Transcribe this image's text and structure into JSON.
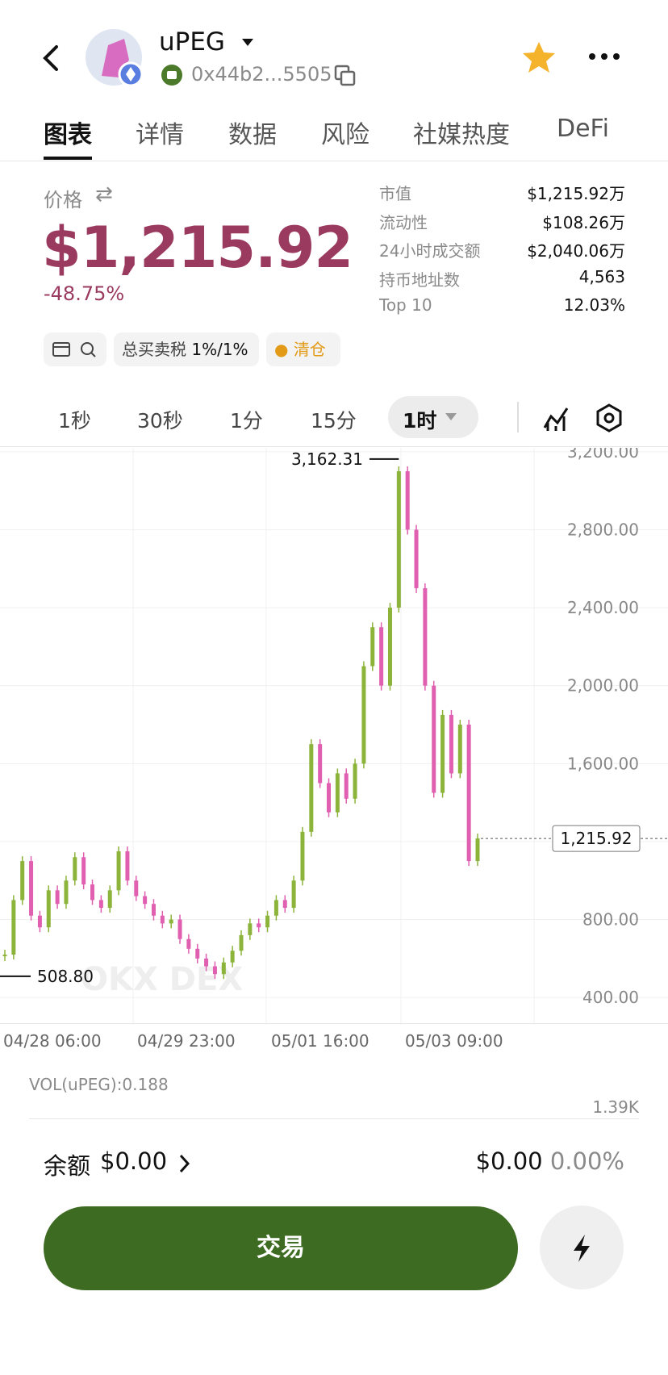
{
  "header": {
    "token": "uPEG",
    "address": "0x44b2...5505"
  },
  "tabs": [
    "图表",
    "详情",
    "数据",
    "风险",
    "社媒热度",
    "DeFi"
  ],
  "price": {
    "label": "价格",
    "value": "$1,215.92",
    "change": "-48.75%"
  },
  "stats": [
    {
      "label": "市值",
      "value": "$1,215.92万"
    },
    {
      "label": "流动性",
      "value": "$108.26万"
    },
    {
      "label": "24小时成交额",
      "value": "$2,040.06万"
    },
    {
      "label": "持币地址数",
      "value": "4,563"
    },
    {
      "label": "Top 10",
      "value": "12.03%"
    }
  ],
  "tags": {
    "tax_label": "总买卖税",
    "tax": "1%/1%",
    "clear": "清仓"
  },
  "intervals": [
    "1秒",
    "30秒",
    "1分",
    "15分",
    "1时"
  ],
  "chart_data": {
    "type": "candlestick",
    "values": [
      620,
      900,
      1100,
      820,
      760,
      950,
      880,
      1000,
      1120,
      980,
      900,
      860,
      950,
      1150,
      1000,
      920,
      880,
      820,
      780,
      800,
      700,
      650,
      600,
      560,
      520,
      580,
      640,
      720,
      780,
      760,
      820,
      900,
      860,
      1000,
      1250,
      1700,
      1500,
      1350,
      1550,
      1420,
      1600,
      2100,
      2300,
      2000,
      2400,
      3100,
      2800,
      2500,
      2000,
      1450,
      1850,
      1550,
      1800,
      1100,
      1215.92
    ],
    "ylim": [
      260,
      3220
    ],
    "yticks": [
      {
        "value": 400,
        "label": "400.00"
      },
      {
        "value": 800,
        "label": "800.00"
      },
      {
        "value": 1200,
        "label": "1,200.00"
      },
      {
        "value": 1600,
        "label": "1,600.00"
      },
      {
        "value": 2000,
        "label": "2,000.00"
      },
      {
        "value": 2400,
        "label": "2,400.00"
      },
      {
        "value": 2800,
        "label": "2,800.00"
      },
      {
        "value": 3200,
        "label": "3,200.00"
      }
    ],
    "xlabels": [
      "04/28 06:00",
      "04/29 23:00",
      "05/01 16:00",
      "05/03 09:00"
    ],
    "max": {
      "value": 3162.31,
      "label": "3,162.31"
    },
    "min": {
      "value": 508.8,
      "label": "508.80"
    },
    "current": {
      "value": 1215.92,
      "label": "1,215.92"
    },
    "volume_label": "VOL(uPEG):0.188",
    "volume_max": "1.39K"
  },
  "balance": {
    "label": "余额",
    "value": "$0.00",
    "usd": "$0.00",
    "pct": "0.00%"
  },
  "trade_button": "交易"
}
